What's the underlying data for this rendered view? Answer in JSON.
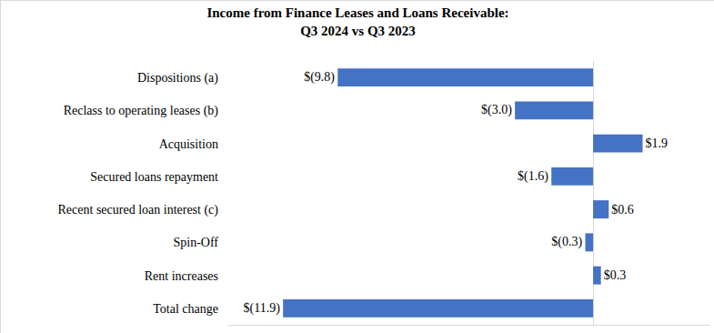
{
  "chart_data": {
    "type": "bar",
    "orientation": "horizontal",
    "title": [
      "Income from Finance Leases and Loans Receivable:",
      "Q3 2024 vs Q3 2023"
    ],
    "categories": [
      "Dispositions (a)",
      "Reclass to operating leases (b)",
      "Acquisition",
      "Secured loans repayment",
      "Recent secured loan interest (c)",
      "Spin-Off",
      "Rent increases",
      "Total change"
    ],
    "values": [
      -9.8,
      -3.0,
      1.9,
      -1.6,
      0.6,
      -0.3,
      0.3,
      -11.9
    ],
    "value_labels": [
      "$(9.8)",
      "$(3.0)",
      "$1.9",
      "$(1.6)",
      "$0.6",
      "$(0.3)",
      "$0.3",
      "$(11.9)"
    ],
    "color": "#4472c4",
    "xlim": [
      -14,
      4.5
    ],
    "xticks": [
      0
    ],
    "grid": true,
    "data_labels": true,
    "tick_labels": "y"
  }
}
